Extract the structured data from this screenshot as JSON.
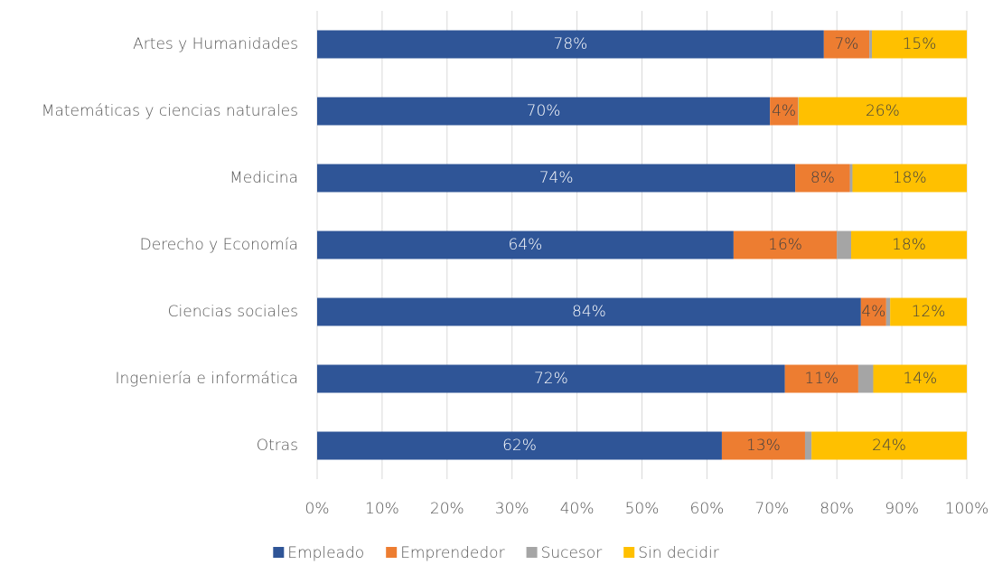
{
  "chart_data": {
    "type": "stacked-barh",
    "categories": [
      "Artes y Humanidades",
      "Matemáticas y ciencias naturales",
      "Medicina",
      "Derecho y Economía",
      "Ciencias sociales",
      "Ingeniería e informática",
      "Otras"
    ],
    "series": [
      {
        "name": "Empleado",
        "color": "#2f5597",
        "values": [
          78,
          69.7,
          73.6,
          64.1,
          83.7,
          72,
          62.3
        ],
        "value_labels": [
          "78%",
          "70%",
          "74%",
          "64%",
          "84%",
          "72%",
          "62%"
        ]
      },
      {
        "name": "Emprendedor",
        "color": "#ed7d31",
        "values": [
          7,
          4.3,
          8.4,
          15.9,
          3.9,
          11.3,
          12.8
        ],
        "value_labels": [
          "7%",
          "4%",
          "8%",
          "16%",
          "4%",
          "11%",
          "13%"
        ]
      },
      {
        "name": "Sucesor",
        "color": "#a5a5a5",
        "values": [
          0.4,
          0.1,
          0.4,
          2.2,
          0.6,
          2.3,
          1.0
        ]
      },
      {
        "name": "Sin decidir",
        "color": "#ffc000",
        "values": [
          14.6,
          25.9,
          17.6,
          17.8,
          11.8,
          14.4,
          23.9
        ],
        "value_labels": [
          "15%",
          "26%",
          "18%",
          "18%",
          "12%",
          "14%",
          "24%"
        ]
      }
    ],
    "xlim": [
      0,
      100
    ],
    "xticks": [
      {
        "value": 0,
        "label": "0%"
      },
      {
        "value": 10,
        "label": "10%"
      },
      {
        "value": 20,
        "label": "20%"
      },
      {
        "value": 30,
        "label": "30%"
      },
      {
        "value": 40,
        "label": "40%"
      },
      {
        "value": 50,
        "label": "50%"
      },
      {
        "value": 60,
        "label": "60%"
      },
      {
        "value": 70,
        "label": "70%"
      },
      {
        "value": 80,
        "label": "80%"
      },
      {
        "value": 90,
        "label": "90%"
      },
      {
        "value": 100,
        "label": "100%"
      }
    ],
    "grid": true,
    "legend": "bottom"
  }
}
